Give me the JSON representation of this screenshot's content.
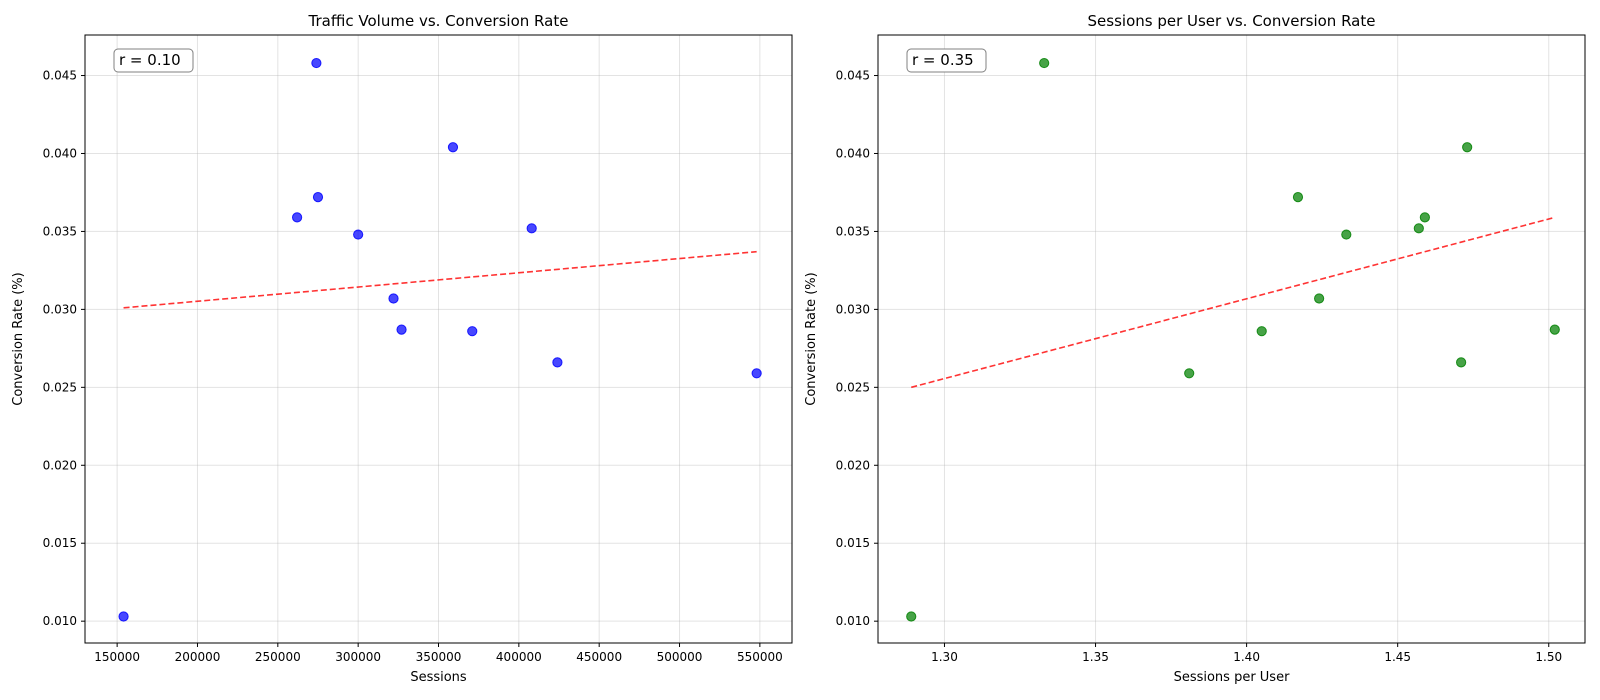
{
  "chart_data": [
    {
      "type": "scatter",
      "title": "Traffic Volume vs. Conversion Rate",
      "xlabel": "Sessions",
      "ylabel": "Conversion Rate (%)",
      "xlim": [
        130000,
        570000
      ],
      "ylim": [
        0.0086,
        0.0476
      ],
      "xticks": [
        150000,
        200000,
        250000,
        300000,
        350000,
        400000,
        450000,
        500000,
        550000
      ],
      "yticks": [
        0.01,
        0.015,
        0.02,
        0.025,
        0.03,
        0.035,
        0.04,
        0.045
      ],
      "grid": true,
      "point_color": "#0000ff",
      "annotation": "r = 0.10",
      "series": [
        {
          "x": [
            154000,
            262000,
            274000,
            275000,
            300000,
            322000,
            327000,
            359000,
            371000,
            408000,
            424000,
            548000
          ],
          "y": [
            0.0103,
            0.0359,
            0.0458,
            0.0372,
            0.0348,
            0.0307,
            0.0287,
            0.0404,
            0.0286,
            0.0352,
            0.0266,
            0.0259
          ]
        }
      ],
      "trendline": {
        "color": "#ff0000",
        "style": "dashed",
        "x": [
          154000,
          548000
        ],
        "y": [
          0.0301,
          0.0337
        ]
      }
    },
    {
      "type": "scatter",
      "title": "Sessions per User vs. Conversion Rate",
      "xlabel": "Sessions per User",
      "ylabel": "Conversion Rate (%)",
      "xlim": [
        1.278,
        1.512
      ],
      "ylim": [
        0.0086,
        0.0476
      ],
      "xticks": [
        1.3,
        1.35,
        1.4,
        1.45,
        1.5
      ],
      "yticks": [
        0.01,
        0.015,
        0.02,
        0.025,
        0.03,
        0.035,
        0.04,
        0.045
      ],
      "grid": true,
      "point_color": "#008000",
      "annotation": "r = 0.35",
      "series": [
        {
          "x": [
            1.289,
            1.333,
            1.381,
            1.405,
            1.417,
            1.424,
            1.433,
            1.457,
            1.459,
            1.471,
            1.473,
            1.502
          ],
          "y": [
            0.0103,
            0.0458,
            0.0259,
            0.0286,
            0.0372,
            0.0307,
            0.0348,
            0.0352,
            0.0359,
            0.0266,
            0.0404,
            0.0287
          ]
        }
      ],
      "trendline": {
        "color": "#ff0000",
        "style": "dashed",
        "x": [
          1.289,
          1.502
        ],
        "y": [
          0.025,
          0.0359
        ]
      }
    }
  ]
}
